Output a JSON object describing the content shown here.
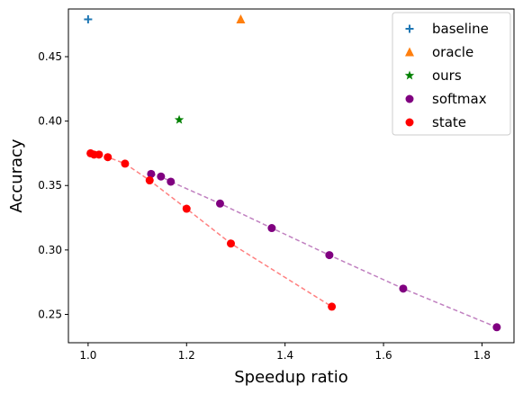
{
  "chart_data": {
    "type": "scatter",
    "xlabel": "Speedup ratio",
    "ylabel": "Accuracy",
    "xlim": [
      0.96,
      1.865
    ],
    "ylim": [
      0.228,
      0.487
    ],
    "xticks": [
      1.0,
      1.2,
      1.4,
      1.6,
      1.8
    ],
    "xtick_labels": [
      "1.0",
      "1.2",
      "1.4",
      "1.6",
      "1.8"
    ],
    "yticks": [
      0.25,
      0.3,
      0.35,
      0.4,
      0.45
    ],
    "ytick_labels": [
      "0.25",
      "0.30",
      "0.35",
      "0.40",
      "0.45"
    ],
    "grid": false,
    "legend_position": "top-right",
    "series": [
      {
        "name": "baseline",
        "marker": "plus",
        "color": "#1f77b4",
        "line": false,
        "x": [
          1.0
        ],
        "y": [
          0.479
        ]
      },
      {
        "name": "oracle",
        "marker": "triangle",
        "color": "#ff7f0e",
        "line": false,
        "x": [
          1.31
        ],
        "y": [
          0.479
        ]
      },
      {
        "name": "ours",
        "marker": "star",
        "color": "#008000",
        "line": false,
        "x": [
          1.185
        ],
        "y": [
          0.401
        ]
      },
      {
        "name": "softmax",
        "marker": "circle",
        "color": "#800080",
        "line": true,
        "line_color": "#c080c0",
        "x": [
          1.128,
          1.148,
          1.168,
          1.268,
          1.373,
          1.49,
          1.64,
          1.83
        ],
        "y": [
          0.359,
          0.357,
          0.353,
          0.336,
          0.317,
          0.296,
          0.27,
          0.24
        ]
      },
      {
        "name": "state",
        "marker": "circle",
        "color": "#ff0000",
        "line": true,
        "line_color": "#ff8080",
        "x": [
          1.005,
          1.012,
          1.022,
          1.04,
          1.075,
          1.125,
          1.2,
          1.29,
          1.495
        ],
        "y": [
          0.375,
          0.374,
          0.374,
          0.372,
          0.367,
          0.354,
          0.332,
          0.305,
          0.256
        ]
      }
    ]
  }
}
